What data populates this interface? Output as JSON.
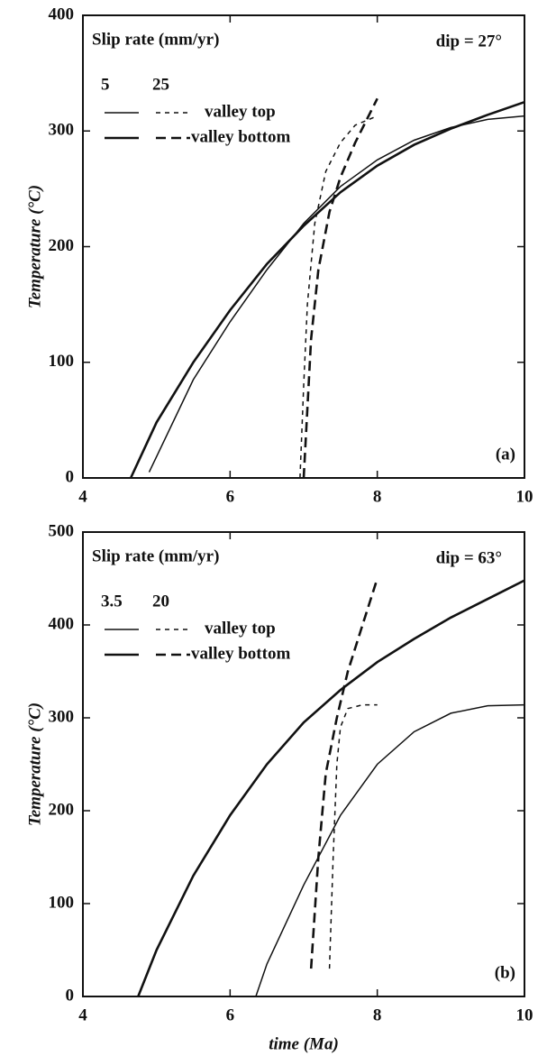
{
  "chart_data": [
    {
      "type": "line",
      "ylabel": "Temperature (°C)",
      "annotation": "dip = 27°",
      "panel_label": "(a)",
      "legend": {
        "title": "Slip rate (mm/yr)",
        "columns": [
          5,
          25
        ],
        "rows": [
          "valley top",
          "valley bottom"
        ]
      },
      "xlim": [
        4,
        10
      ],
      "xticks": [
        4,
        6,
        8,
        10
      ],
      "ylim": [
        0,
        400
      ],
      "yticks": [
        0,
        100,
        200,
        300,
        400
      ],
      "series": [
        {
          "width": "thin",
          "dash": "none",
          "color": "#111111",
          "x": [
            4.9,
            5.5,
            6,
            6.5,
            7,
            7.5,
            8,
            8.5,
            9,
            9.5,
            10
          ],
          "values": [
            5,
            85,
            135,
            180,
            220,
            252,
            275,
            292,
            303,
            310,
            313
          ]
        },
        {
          "width": "thin",
          "dash": "short",
          "color": "#111111",
          "x": [
            6.95,
            7.0,
            7.05,
            7.15,
            7.3,
            7.5,
            7.7,
            8
          ],
          "values": [
            0,
            80,
            150,
            220,
            265,
            290,
            305,
            313
          ]
        },
        {
          "width": "thick",
          "dash": "none",
          "color": "#111111",
          "x": [
            4.65,
            5,
            5.5,
            6,
            6.5,
            7,
            7.5,
            8,
            8.5,
            9,
            9.5,
            10
          ],
          "values": [
            0,
            48,
            100,
            145,
            185,
            218,
            247,
            270,
            288,
            302,
            314,
            325
          ]
        },
        {
          "width": "thick",
          "dash": "long",
          "color": "#111111",
          "x": [
            7.0,
            7.05,
            7.1,
            7.2,
            7.35,
            7.5,
            7.7,
            8
          ],
          "values": [
            0,
            60,
            120,
            180,
            230,
            260,
            290,
            328
          ]
        }
      ]
    },
    {
      "type": "line",
      "xlabel": "time (Ma)",
      "ylabel": "Temperature (°C)",
      "annotation": "dip = 63°",
      "panel_label": "(b)",
      "legend": {
        "title": "Slip rate (mm/yr)",
        "columns": [
          3.5,
          20
        ],
        "rows": [
          "valley top",
          "valley bottom"
        ]
      },
      "xlim": [
        4,
        10
      ],
      "xticks": [
        4,
        6,
        8,
        10
      ],
      "ylim": [
        0,
        500
      ],
      "yticks": [
        0,
        100,
        200,
        300,
        400,
        500
      ],
      "series": [
        {
          "width": "thin",
          "dash": "none",
          "color": "#111111",
          "x": [
            6.35,
            6.5,
            7,
            7.5,
            8,
            8.5,
            9,
            9.5,
            10
          ],
          "values": [
            0,
            35,
            120,
            195,
            250,
            285,
            305,
            313,
            314
          ]
        },
        {
          "width": "thin",
          "dash": "short",
          "color": "#111111",
          "x": [
            7.35,
            7.4,
            7.45,
            7.5,
            7.6,
            7.8,
            8
          ],
          "values": [
            30,
            150,
            250,
            290,
            310,
            314,
            314
          ]
        },
        {
          "width": "thick",
          "dash": "none",
          "color": "#111111",
          "x": [
            4.75,
            5,
            5.5,
            6,
            6.5,
            7,
            7.5,
            8,
            8.5,
            9,
            9.5,
            10
          ],
          "values": [
            0,
            50,
            130,
            195,
            250,
            295,
            330,
            360,
            385,
            408,
            428,
            448
          ]
        },
        {
          "width": "thick",
          "dash": "long",
          "color": "#111111",
          "x": [
            7.1,
            7.2,
            7.3,
            7.45,
            7.6,
            7.8,
            8
          ],
          "values": [
            30,
            150,
            240,
            300,
            350,
            400,
            450
          ]
        }
      ]
    }
  ]
}
